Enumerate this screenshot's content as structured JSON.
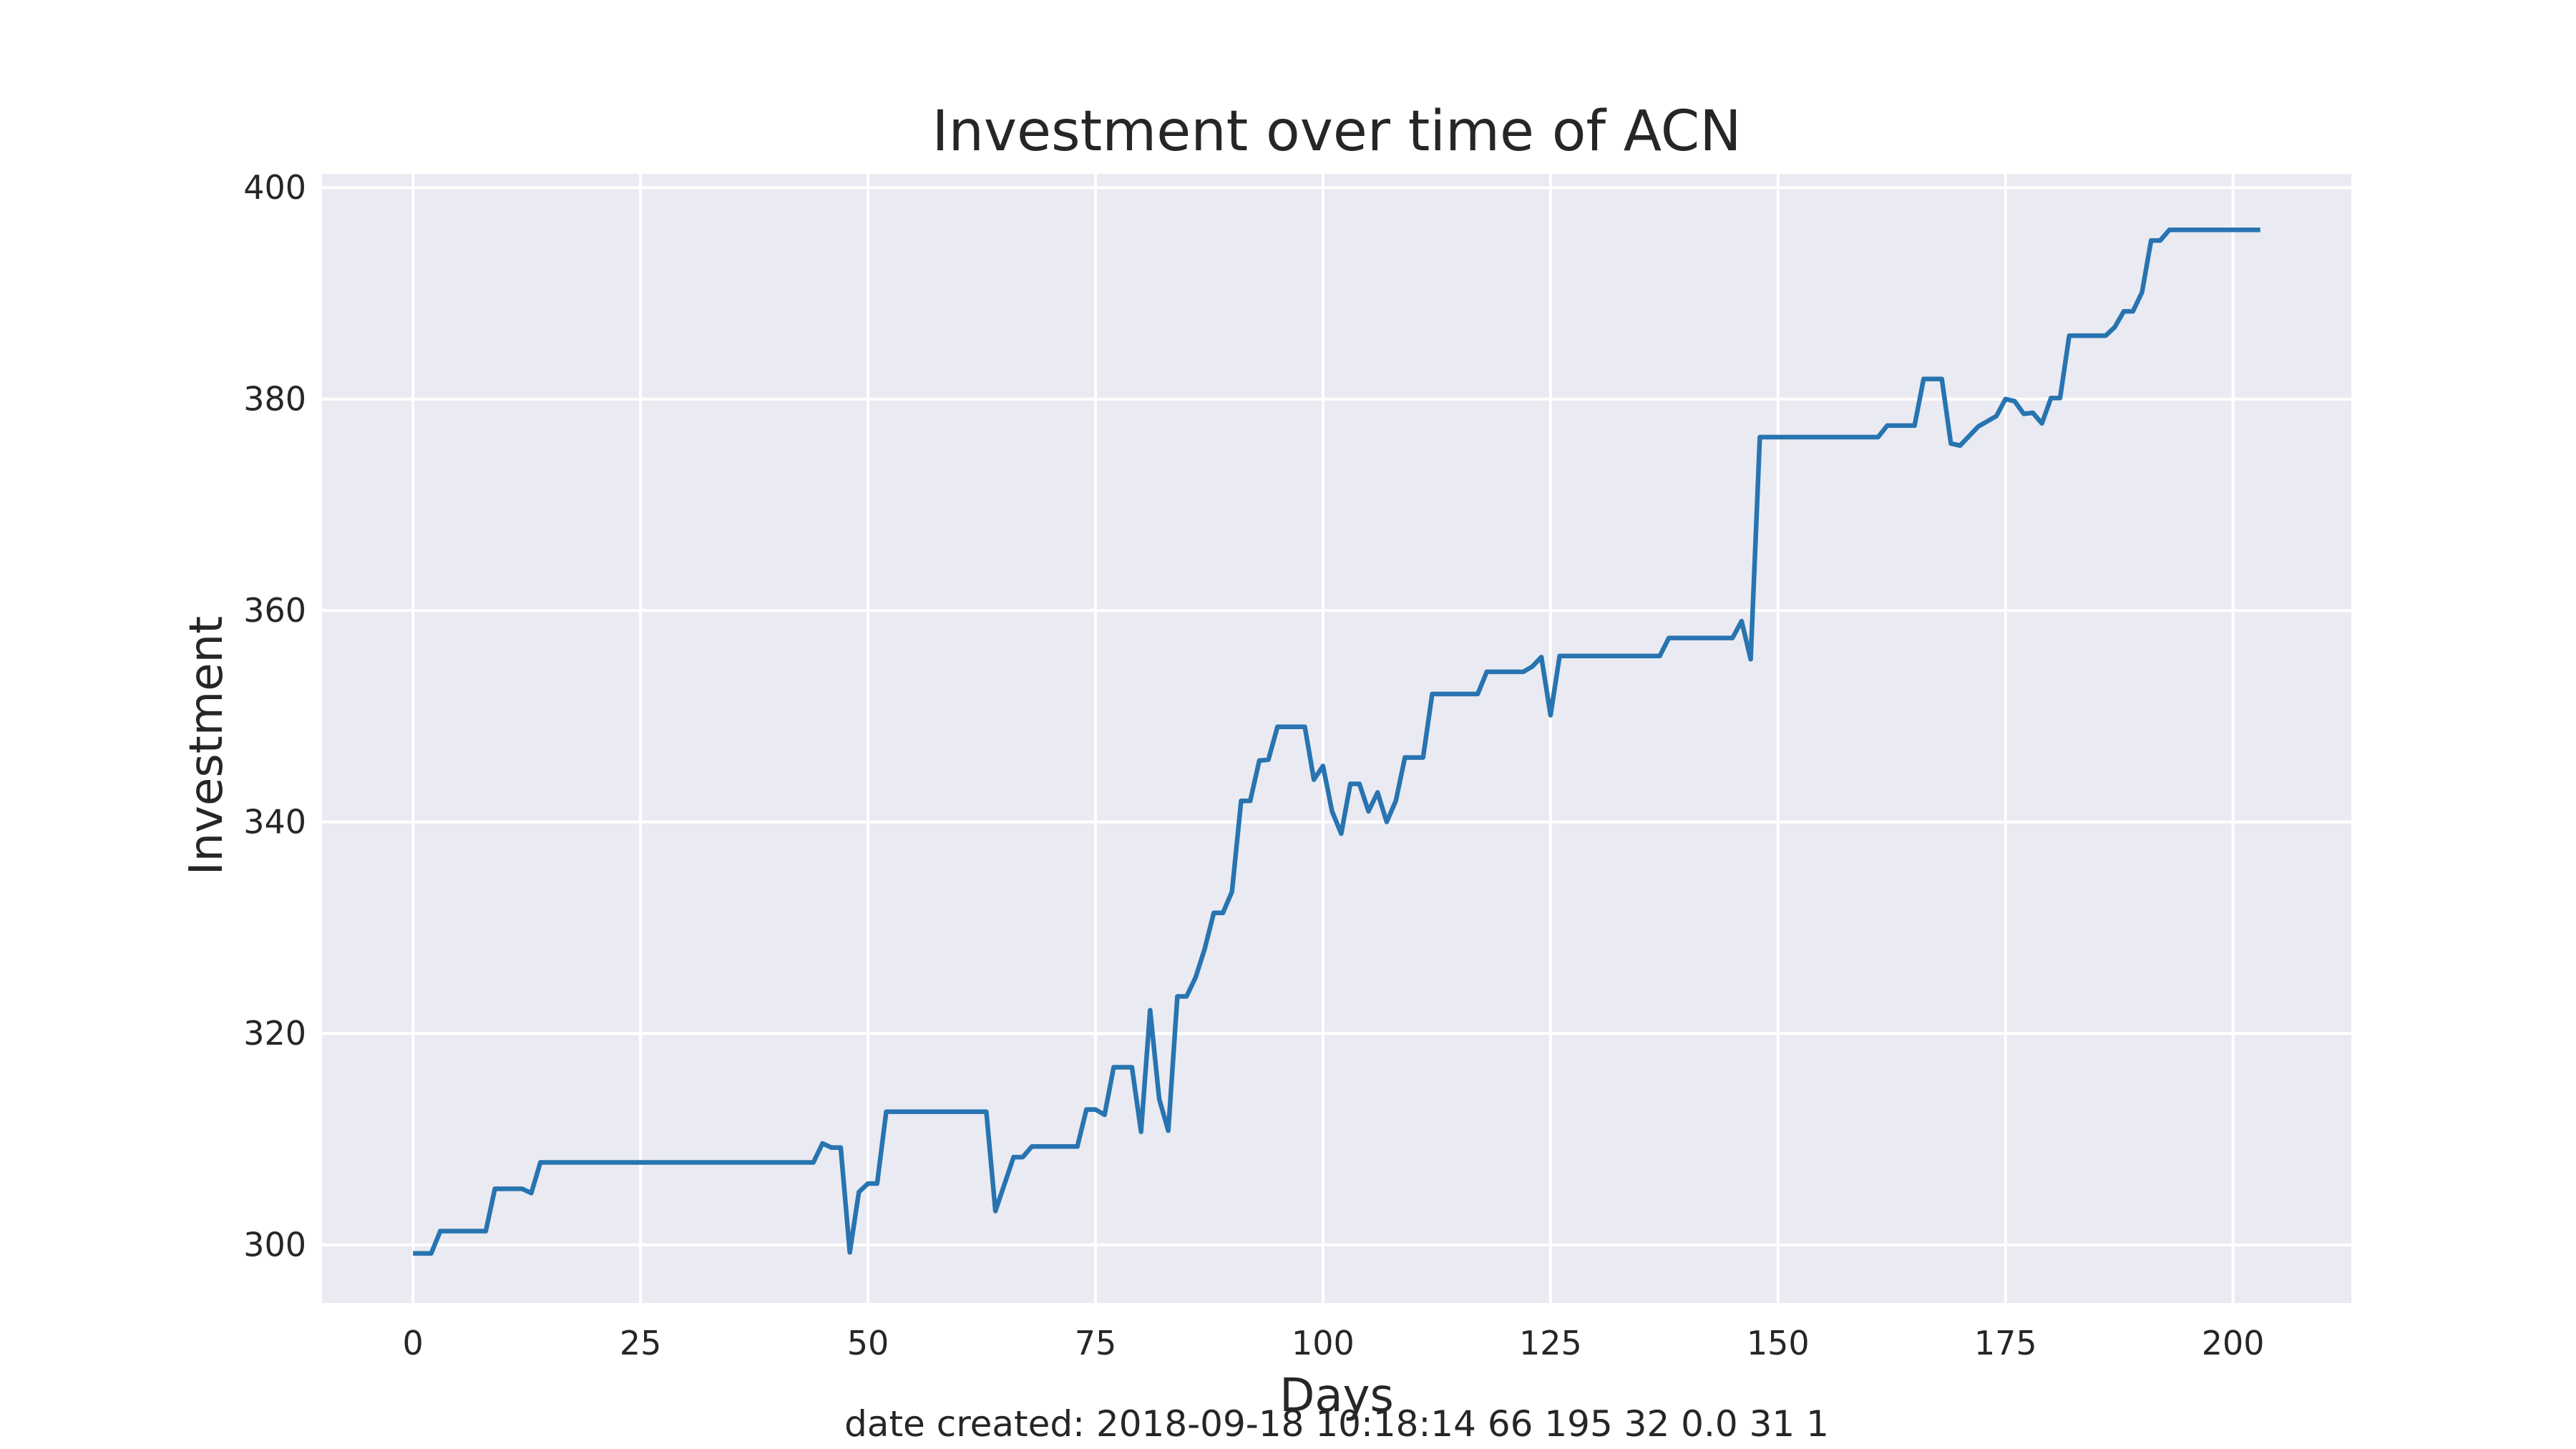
{
  "chart_data": {
    "type": "line",
    "title": "Investment over time of ACN",
    "xlabel": "Days",
    "ylabel": "Investment",
    "xlim": [
      -10,
      213
    ],
    "ylim": [
      294.5,
      401.3
    ],
    "xticks": [
      0,
      25,
      50,
      75,
      100,
      125,
      150,
      175,
      200
    ],
    "yticks": [
      300,
      320,
      340,
      360,
      380,
      400
    ],
    "grid": true,
    "legend": "none",
    "colors": {
      "line": "#2774b0",
      "background": "#eaeaf2",
      "grid": "#ffffff",
      "text": "#262626"
    },
    "series": [
      {
        "points": [
          [
            0,
            299.2
          ],
          [
            2,
            299.2
          ],
          [
            3,
            301.3
          ],
          [
            8,
            301.3
          ],
          [
            9,
            305.3
          ],
          [
            12,
            305.3
          ],
          [
            13,
            304.9
          ],
          [
            14,
            307.8
          ],
          [
            43,
            307.8
          ],
          [
            44,
            307.8
          ],
          [
            45,
            309.6
          ],
          [
            46,
            309.2
          ],
          [
            47,
            309.2
          ],
          [
            48,
            299.3
          ],
          [
            49,
            305.0
          ],
          [
            50,
            305.8
          ],
          [
            51,
            305.8
          ],
          [
            52,
            312.6
          ],
          [
            63,
            312.6
          ],
          [
            64,
            303.2
          ],
          [
            66,
            308.3
          ],
          [
            67,
            308.3
          ],
          [
            68,
            309.3
          ],
          [
            73,
            309.3
          ],
          [
            74,
            312.8
          ],
          [
            75,
            312.8
          ],
          [
            76,
            312.3
          ],
          [
            77,
            316.8
          ],
          [
            79,
            316.8
          ],
          [
            80,
            310.7
          ],
          [
            81,
            322.2
          ],
          [
            82,
            313.8
          ],
          [
            83,
            310.8
          ],
          [
            84,
            323.5
          ],
          [
            85,
            323.5
          ],
          [
            86,
            325.3
          ],
          [
            87,
            328.0
          ],
          [
            88,
            331.4
          ],
          [
            89,
            331.4
          ],
          [
            90,
            333.4
          ],
          [
            91,
            342.0
          ],
          [
            92,
            342.0
          ],
          [
            93,
            345.8
          ],
          [
            94,
            345.9
          ],
          [
            95,
            349.0
          ],
          [
            98,
            349.0
          ],
          [
            99,
            344.0
          ],
          [
            100,
            345.3
          ],
          [
            101,
            341.0
          ],
          [
            102,
            338.9
          ],
          [
            103,
            343.6
          ],
          [
            104,
            343.6
          ],
          [
            105,
            341.0
          ],
          [
            106,
            342.8
          ],
          [
            107,
            340.0
          ],
          [
            108,
            342.0
          ],
          [
            109,
            346.1
          ],
          [
            111,
            346.1
          ],
          [
            112,
            352.1
          ],
          [
            117,
            352.1
          ],
          [
            118,
            354.2
          ],
          [
            122,
            354.2
          ],
          [
            123,
            354.7
          ],
          [
            124,
            355.6
          ],
          [
            125,
            350.1
          ],
          [
            126,
            355.7
          ],
          [
            137,
            355.7
          ],
          [
            138,
            357.4
          ],
          [
            145,
            357.4
          ],
          [
            146,
            359.0
          ],
          [
            147,
            355.4
          ],
          [
            148,
            376.4
          ],
          [
            161,
            376.4
          ],
          [
            162,
            377.5
          ],
          [
            165,
            377.5
          ],
          [
            166,
            381.9
          ],
          [
            168,
            381.9
          ],
          [
            169,
            375.8
          ],
          [
            170,
            375.6
          ],
          [
            172,
            377.4
          ],
          [
            174,
            378.4
          ],
          [
            175,
            380.0
          ],
          [
            176,
            379.8
          ],
          [
            177,
            378.6
          ],
          [
            178,
            378.7
          ],
          [
            179,
            377.7
          ],
          [
            180,
            380.1
          ],
          [
            181,
            380.1
          ],
          [
            182,
            386.0
          ],
          [
            186,
            386.0
          ],
          [
            187,
            386.8
          ],
          [
            188,
            388.3
          ],
          [
            189,
            388.3
          ],
          [
            190,
            390.1
          ],
          [
            191,
            395.0
          ],
          [
            192,
            395.0
          ],
          [
            193,
            396.0
          ],
          [
            203,
            396.0
          ]
        ]
      }
    ]
  },
  "footer": {
    "caption": "date created: 2018-09-18 10:18:14 66 195 32 0.0 31 1"
  }
}
